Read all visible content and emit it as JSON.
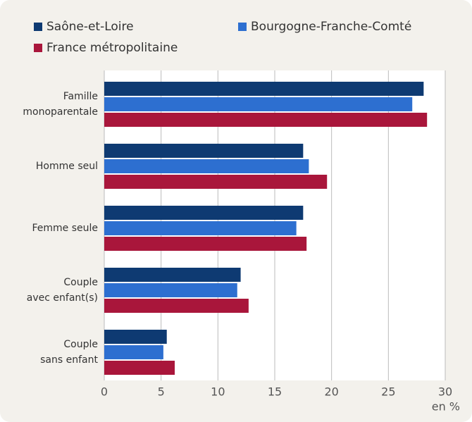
{
  "chart_data": {
    "type": "barh",
    "categories": [
      [
        "Famille",
        "monoparentale"
      ],
      [
        "Homme seul"
      ],
      [
        "Femme seule"
      ],
      [
        "Couple",
        "avec enfant(s)"
      ],
      [
        "Couple",
        "sans enfant"
      ]
    ],
    "series": [
      {
        "name": "Saône-et-Loire",
        "color": "#0e3a72",
        "values": [
          28.1,
          17.5,
          17.5,
          12.0,
          5.5
        ]
      },
      {
        "name": "Bourgogne-Franche-Comté",
        "color": "#2d6fd0",
        "values": [
          27.1,
          18.0,
          16.9,
          11.7,
          5.2
        ]
      },
      {
        "name": "France métropolitaine",
        "color": "#a9163b",
        "values": [
          28.4,
          19.6,
          17.8,
          12.7,
          6.2
        ]
      }
    ],
    "xlim": [
      0,
      30
    ],
    "xticks": [
      0,
      5,
      10,
      15,
      20,
      25,
      30
    ],
    "xlabel": "en %",
    "grid": true
  }
}
